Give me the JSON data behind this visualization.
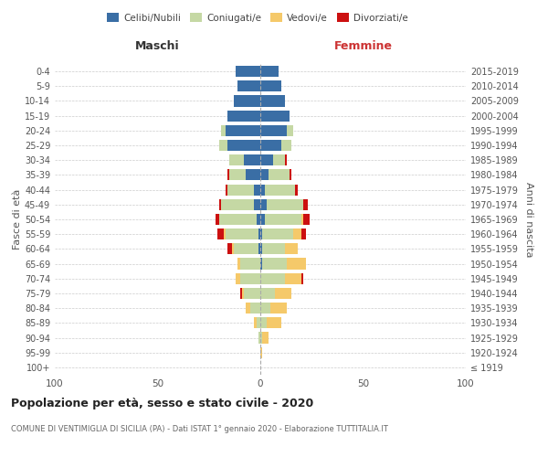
{
  "age_groups": [
    "100+",
    "95-99",
    "90-94",
    "85-89",
    "80-84",
    "75-79",
    "70-74",
    "65-69",
    "60-64",
    "55-59",
    "50-54",
    "45-49",
    "40-44",
    "35-39",
    "30-34",
    "25-29",
    "20-24",
    "15-19",
    "10-14",
    "5-9",
    "0-4"
  ],
  "birth_years": [
    "≤ 1919",
    "1920-1924",
    "1925-1929",
    "1930-1934",
    "1935-1939",
    "1940-1944",
    "1945-1949",
    "1950-1954",
    "1955-1959",
    "1960-1964",
    "1965-1969",
    "1970-1974",
    "1975-1979",
    "1980-1984",
    "1985-1989",
    "1990-1994",
    "1995-1999",
    "2000-2004",
    "2005-2009",
    "2010-2014",
    "2015-2019"
  ],
  "male": {
    "celibi": [
      0,
      0,
      0,
      0,
      0,
      0,
      0,
      0,
      1,
      1,
      2,
      3,
      3,
      7,
      8,
      16,
      17,
      16,
      13,
      11,
      12
    ],
    "coniugati": [
      0,
      0,
      1,
      2,
      5,
      8,
      10,
      10,
      12,
      16,
      18,
      16,
      13,
      8,
      7,
      4,
      2,
      0,
      0,
      0,
      0
    ],
    "vedovi": [
      0,
      0,
      0,
      1,
      2,
      1,
      2,
      1,
      1,
      1,
      0,
      0,
      0,
      0,
      0,
      0,
      0,
      0,
      0,
      0,
      0
    ],
    "divorziati": [
      0,
      0,
      0,
      0,
      0,
      1,
      0,
      0,
      2,
      3,
      2,
      1,
      1,
      1,
      0,
      0,
      0,
      0,
      0,
      0,
      0
    ]
  },
  "female": {
    "nubili": [
      0,
      0,
      0,
      0,
      0,
      0,
      0,
      1,
      1,
      1,
      2,
      3,
      2,
      4,
      6,
      10,
      13,
      14,
      12,
      10,
      9
    ],
    "coniugate": [
      0,
      0,
      1,
      3,
      5,
      7,
      12,
      12,
      11,
      15,
      18,
      18,
      15,
      10,
      6,
      5,
      3,
      0,
      0,
      0,
      0
    ],
    "vedove": [
      0,
      1,
      3,
      7,
      8,
      8,
      8,
      9,
      6,
      4,
      1,
      0,
      0,
      0,
      0,
      0,
      0,
      0,
      0,
      0,
      0
    ],
    "divorziate": [
      0,
      0,
      0,
      0,
      0,
      0,
      1,
      0,
      0,
      2,
      3,
      2,
      1,
      1,
      1,
      0,
      0,
      0,
      0,
      0,
      0
    ]
  },
  "colors": {
    "celibi": "#3a6ea5",
    "coniugati": "#c5d8a4",
    "vedovi": "#f5c96a",
    "divorziati": "#cc1010"
  },
  "title": "Popolazione per età, sesso e stato civile - 2020",
  "subtitle": "COMUNE DI VENTIMIGLIA DI SICILIA (PA) - Dati ISTAT 1° gennaio 2020 - Elaborazione TUTTITALIA.IT",
  "xlabel_left": "Maschi",
  "xlabel_right": "Femmine",
  "ylabel_left": "Fasce di età",
  "ylabel_right": "Anni di nascita",
  "xlim": 100,
  "background_color": "#ffffff",
  "grid_color": "#cccccc"
}
